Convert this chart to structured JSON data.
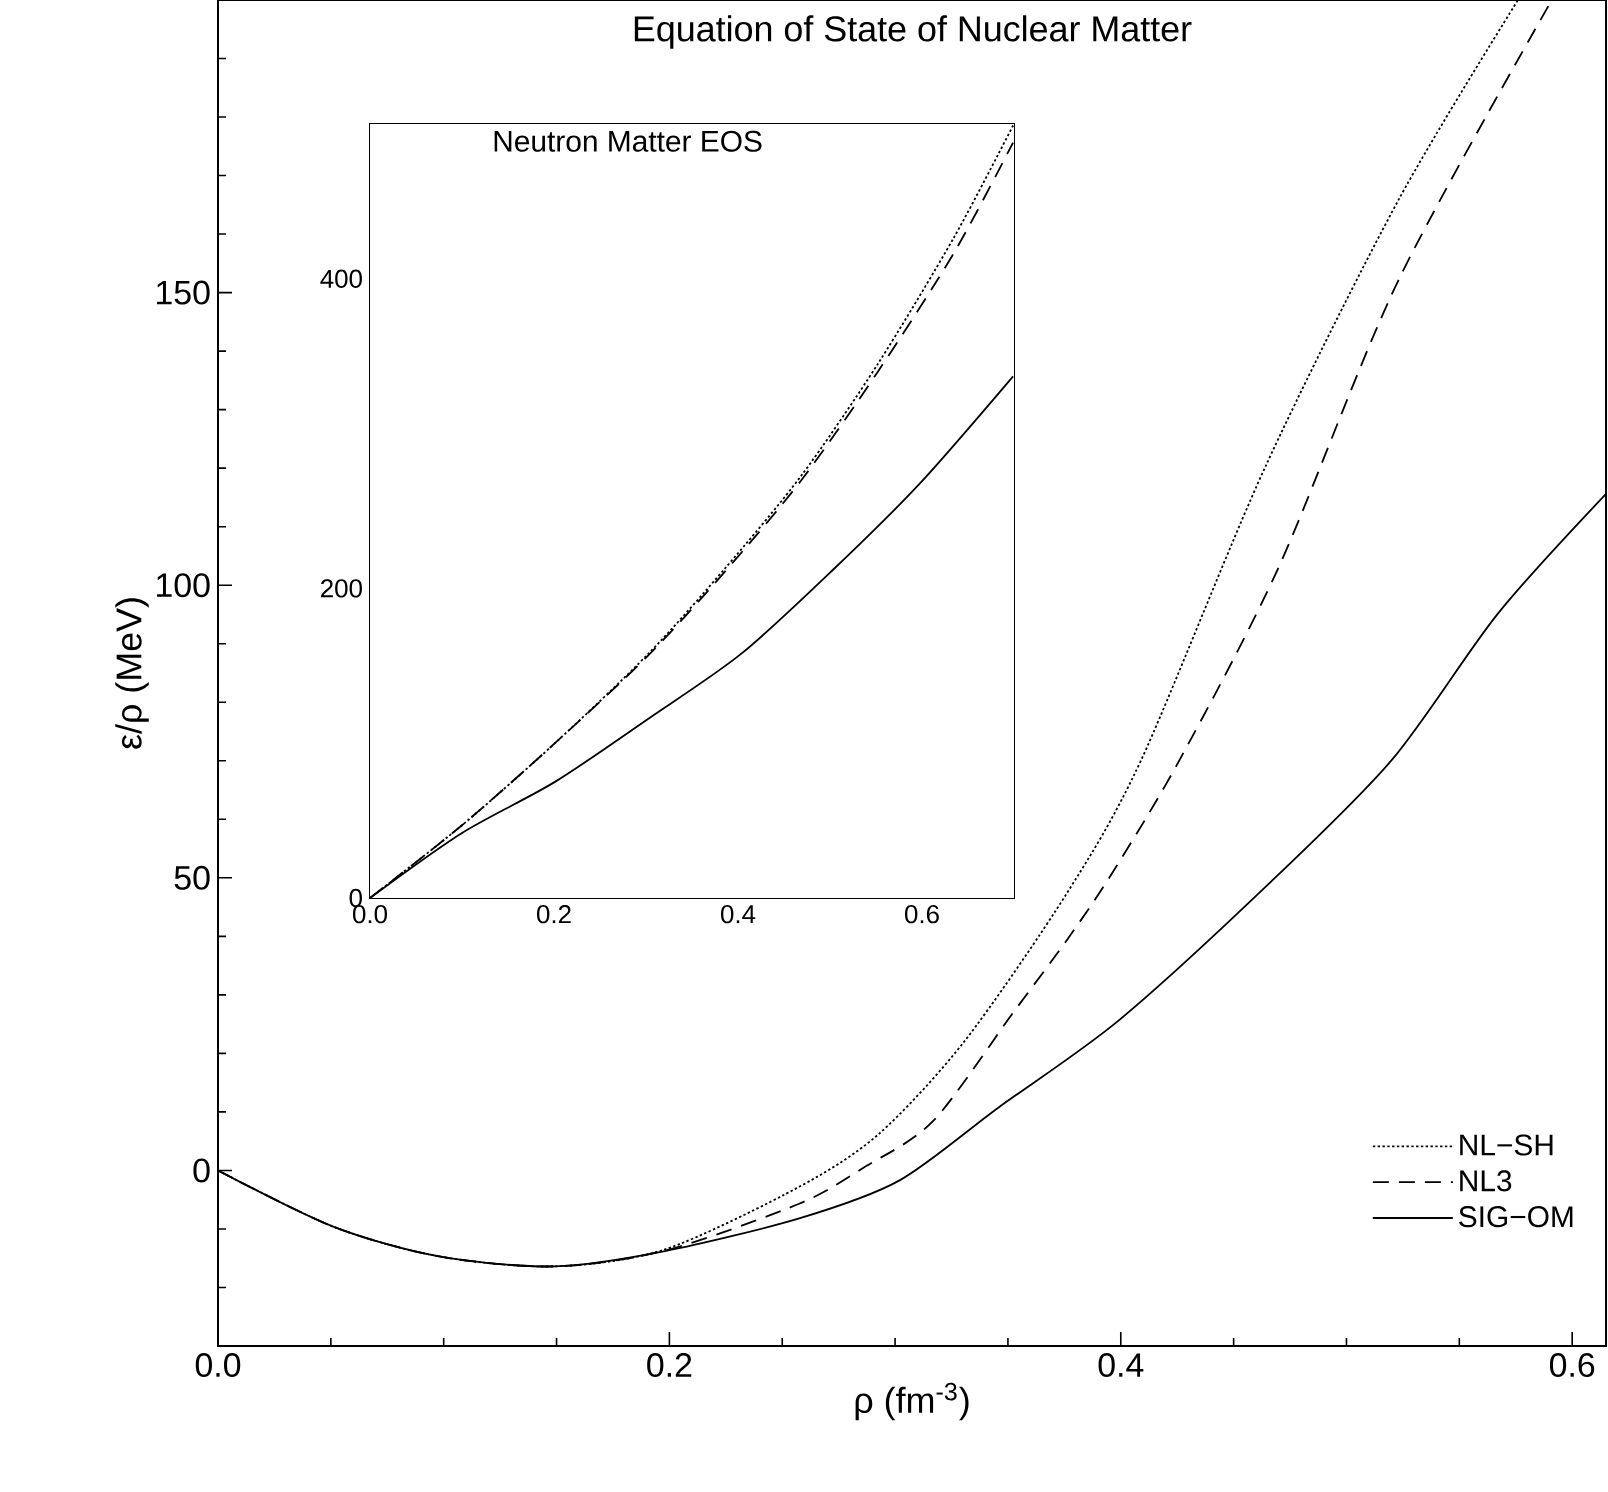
{
  "chart_data": [
    {
      "type": "line",
      "title": "Equation of State of Nuclear Matter",
      "xlabel": "ρ (fm$^{-3}$)",
      "ylabel": "ε/ρ (MeV)",
      "xlim": [
        0,
        0.615
      ],
      "ylim": [
        -30,
        200
      ],
      "xticks": [
        {
          "value": 0,
          "label": "0.0"
        },
        {
          "value": 0.05,
          "label": null
        },
        {
          "value": 0.1,
          "label": null
        },
        {
          "value": 0.15,
          "label": null
        },
        {
          "value": 0.2,
          "label": "0.2"
        },
        {
          "value": 0.25,
          "label": null
        },
        {
          "value": 0.3,
          "label": null
        },
        {
          "value": 0.35,
          "label": null
        },
        {
          "value": 0.4,
          "label": "0.4"
        },
        {
          "value": 0.45,
          "label": null
        },
        {
          "value": 0.5,
          "label": null
        },
        {
          "value": 0.55,
          "label": null
        },
        {
          "value": 0.6,
          "label": "0.6"
        }
      ],
      "yticks": [
        {
          "value": -20,
          "label": null
        },
        {
          "value": -10,
          "label": null
        },
        0,
        {
          "value": 10,
          "label": null
        },
        {
          "value": 20,
          "label": null
        },
        {
          "value": 30,
          "label": null
        },
        {
          "value": 40,
          "label": null
        },
        50,
        {
          "value": 60,
          "label": null
        },
        {
          "value": 70,
          "label": null
        },
        {
          "value": 80,
          "label": null
        },
        {
          "value": 90,
          "label": null
        },
        100,
        {
          "value": 110,
          "label": null
        },
        {
          "value": 120,
          "label": null
        },
        {
          "value": 130,
          "label": null
        },
        {
          "value": 140,
          "label": null
        },
        150,
        {
          "value": 160,
          "label": null
        },
        {
          "value": 170,
          "label": null
        },
        {
          "value": 180,
          "label": null
        },
        {
          "value": 190,
          "label": null
        }
      ],
      "legend": "bottom right",
      "series": [
        {
          "name": "NL−SH",
          "color": "#000000",
          "line_style": "dotted",
          "x": [
            0,
            0.051,
            0.098,
            0.149,
            0.198,
            0.2575,
            0.293,
            0.331,
            0.376,
            0.409,
            0.464,
            0.523,
            0.576
          ],
          "values": [
            0,
            -9.6,
            -14.7,
            -16.4,
            -13.5,
            -2.8,
            6.3,
            22.2,
            47.3,
            70.1,
            120.2,
            165.8,
            200
          ]
        },
        {
          "name": "NL3",
          "color": "#000000",
          "line_style": "dashed",
          "x": [
            0,
            0.051,
            0.098,
            0.149,
            0.198,
            0.2575,
            0.287,
            0.317,
            0.352,
            0.376,
            0.396,
            0.426,
            0.47,
            0.523,
            0.591
          ],
          "values": [
            0,
            -9.6,
            -14.7,
            -16.4,
            -13.7,
            -5.7,
            0.7,
            8.5,
            26.8,
            39.3,
            50.7,
            70.1,
            103.1,
            152.1,
            200
          ]
        },
        {
          "name": "SIG−OM",
          "color": "#000000",
          "line_style": "solid",
          "x": [
            0,
            0.051,
            0.098,
            0.149,
            0.198,
            0.2575,
            0.302,
            0.346,
            0.399,
            0.464,
            0.52,
            0.567,
            0.615
          ],
          "values": [
            0,
            -9.6,
            -14.7,
            -16.4,
            -13.8,
            -8.2,
            -1.7,
            10.8,
            25.6,
            48.4,
            70.1,
            95.1,
            115.6
          ]
        }
      ]
    },
    {
      "type": "line",
      "title": "Neutron Matter EOS",
      "xlim": [
        0,
        0.7
      ],
      "ylim": [
        0,
        500
      ],
      "xticks": [
        {
          "value": 0,
          "label": "0.0"
        },
        {
          "value": 0.05,
          "label": null
        },
        {
          "value": 0.1,
          "label": null
        },
        {
          "value": 0.15,
          "label": null
        },
        {
          "value": 0.2,
          "label": "0.2"
        },
        {
          "value": 0.25,
          "label": null
        },
        {
          "value": 0.3,
          "label": null
        },
        {
          "value": 0.35,
          "label": null
        },
        {
          "value": 0.4,
          "label": "0.4"
        },
        {
          "value": 0.45,
          "label": null
        },
        {
          "value": 0.5,
          "label": null
        },
        {
          "value": 0.55,
          "label": null
        },
        {
          "value": 0.6,
          "label": "0.6"
        },
        {
          "value": 0.65,
          "label": null
        }
      ],
      "yticks": [
        0,
        {
          "value": 50,
          "label": null
        },
        {
          "value": 100,
          "label": null
        },
        {
          "value": 150,
          "label": null
        },
        200,
        {
          "value": 250,
          "label": null
        },
        {
          "value": 300,
          "label": null
        },
        {
          "value": 350,
          "label": null
        },
        400,
        {
          "value": 450,
          "label": null
        }
      ],
      "series": [
        {
          "color": "#000000",
          "line_style": "dotted",
          "x": [
            0,
            0.1,
            0.201,
            0.303,
            0.386,
            0.469,
            0.552,
            0.635,
            0.699
          ],
          "values": [
            0,
            47,
            100,
            158,
            213,
            273,
            345,
            427,
            499
          ]
        },
        {
          "color": "#000000",
          "line_style": "dashed",
          "x": [
            0,
            0.1,
            0.201,
            0.303,
            0.386,
            0.469,
            0.552,
            0.635,
            0.699
          ],
          "values": [
            0,
            47,
            100,
            157,
            211,
            270,
            340,
            417,
            488
          ]
        },
        {
          "color": "#000000",
          "line_style": "solid",
          "x": [
            0,
            0.1,
            0.201,
            0.303,
            0.404,
            0.505,
            0.598,
            0.699
          ],
          "values": [
            0,
            42,
            75,
            116,
            158,
            213,
            268,
            337
          ]
        }
      ]
    }
  ]
}
